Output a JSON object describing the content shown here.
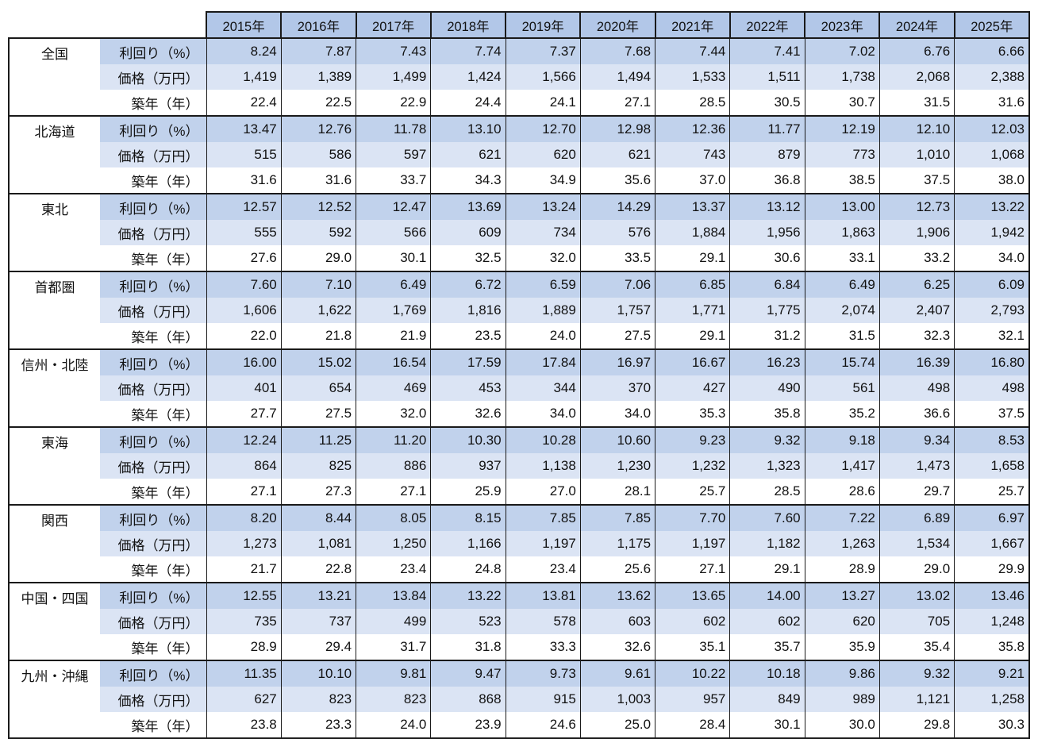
{
  "colors": {
    "header_bg": "#b2c7e8",
    "yield_row_bg": "#c1d2ec",
    "price_row_bg": "#dbe4f4",
    "age_row_bg": "#ffffff",
    "border": "#1a1a1a"
  },
  "chart_data": {
    "type": "table",
    "years": [
      "2015年",
      "2016年",
      "2017年",
      "2018年",
      "2019年",
      "2020年",
      "2021年",
      "2022年",
      "2023年",
      "2024年",
      "2025年"
    ],
    "metrics": [
      {
        "key": "yield",
        "label": "利回り（%）"
      },
      {
        "key": "price",
        "label": "価格（万円）"
      },
      {
        "key": "age",
        "label": "築年（年）"
      }
    ],
    "regions": [
      {
        "name": "全国",
        "values": {
          "yield": [
            "8.24",
            "7.87",
            "7.43",
            "7.74",
            "7.37",
            "7.68",
            "7.44",
            "7.41",
            "7.02",
            "6.76",
            "6.66"
          ],
          "price": [
            "1,419",
            "1,389",
            "1,499",
            "1,424",
            "1,566",
            "1,494",
            "1,533",
            "1,511",
            "1,738",
            "2,068",
            "2,388"
          ],
          "age": [
            "22.4",
            "22.5",
            "22.9",
            "24.4",
            "24.1",
            "27.1",
            "28.5",
            "30.5",
            "30.7",
            "31.5",
            "31.6"
          ]
        }
      },
      {
        "name": "北海道",
        "values": {
          "yield": [
            "13.47",
            "12.76",
            "11.78",
            "13.10",
            "12.70",
            "12.98",
            "12.36",
            "11.77",
            "12.19",
            "12.10",
            "12.03"
          ],
          "price": [
            "515",
            "586",
            "597",
            "621",
            "620",
            "621",
            "743",
            "879",
            "773",
            "1,010",
            "1,068"
          ],
          "age": [
            "31.6",
            "31.6",
            "33.7",
            "34.3",
            "34.9",
            "35.6",
            "37.0",
            "36.8",
            "38.5",
            "37.5",
            "38.0"
          ]
        }
      },
      {
        "name": "東北",
        "values": {
          "yield": [
            "12.57",
            "12.52",
            "12.47",
            "13.69",
            "13.24",
            "14.29",
            "13.37",
            "13.12",
            "13.00",
            "12.73",
            "13.22"
          ],
          "price": [
            "555",
            "592",
            "566",
            "609",
            "734",
            "576",
            "1,884",
            "1,956",
            "1,863",
            "1,906",
            "1,942"
          ],
          "age": [
            "27.6",
            "29.0",
            "30.1",
            "32.5",
            "32.0",
            "33.5",
            "29.1",
            "30.6",
            "33.1",
            "33.2",
            "34.0"
          ]
        }
      },
      {
        "name": "首都圏",
        "values": {
          "yield": [
            "7.60",
            "7.10",
            "6.49",
            "6.72",
            "6.59",
            "7.06",
            "6.85",
            "6.84",
            "6.49",
            "6.25",
            "6.09"
          ],
          "price": [
            "1,606",
            "1,622",
            "1,769",
            "1,816",
            "1,889",
            "1,757",
            "1,771",
            "1,775",
            "2,074",
            "2,407",
            "2,793"
          ],
          "age": [
            "22.0",
            "21.8",
            "21.9",
            "23.5",
            "24.0",
            "27.5",
            "29.1",
            "31.2",
            "31.5",
            "32.3",
            "32.1"
          ]
        }
      },
      {
        "name": "信州・北陸",
        "values": {
          "yield": [
            "16.00",
            "15.02",
            "16.54",
            "17.59",
            "17.84",
            "16.97",
            "16.67",
            "16.23",
            "15.74",
            "16.39",
            "16.80"
          ],
          "price": [
            "401",
            "654",
            "469",
            "453",
            "344",
            "370",
            "427",
            "490",
            "561",
            "498",
            "498"
          ],
          "age": [
            "27.7",
            "27.5",
            "32.0",
            "32.6",
            "34.0",
            "34.0",
            "35.3",
            "35.8",
            "35.2",
            "36.6",
            "37.5"
          ]
        }
      },
      {
        "name": "東海",
        "values": {
          "yield": [
            "12.24",
            "11.25",
            "11.20",
            "10.30",
            "10.28",
            "10.60",
            "9.23",
            "9.32",
            "9.18",
            "9.34",
            "8.53"
          ],
          "price": [
            "864",
            "825",
            "886",
            "937",
            "1,138",
            "1,230",
            "1,232",
            "1,323",
            "1,417",
            "1,473",
            "1,658"
          ],
          "age": [
            "27.1",
            "27.3",
            "27.1",
            "25.9",
            "27.0",
            "28.1",
            "25.7",
            "28.5",
            "28.6",
            "29.7",
            "25.7"
          ]
        }
      },
      {
        "name": "関西",
        "values": {
          "yield": [
            "8.20",
            "8.44",
            "8.05",
            "8.15",
            "7.85",
            "7.85",
            "7.70",
            "7.60",
            "7.22",
            "6.89",
            "6.97"
          ],
          "price": [
            "1,273",
            "1,081",
            "1,250",
            "1,166",
            "1,197",
            "1,175",
            "1,197",
            "1,182",
            "1,263",
            "1,534",
            "1,667"
          ],
          "age": [
            "21.7",
            "22.8",
            "23.4",
            "24.8",
            "23.4",
            "25.6",
            "27.1",
            "29.1",
            "28.9",
            "29.0",
            "29.9"
          ]
        }
      },
      {
        "name": "中国・四国",
        "values": {
          "yield": [
            "12.55",
            "13.21",
            "13.84",
            "13.22",
            "13.81",
            "13.62",
            "13.65",
            "14.00",
            "13.27",
            "13.02",
            "13.46"
          ],
          "price": [
            "735",
            "737",
            "499",
            "523",
            "578",
            "603",
            "602",
            "602",
            "620",
            "705",
            "1,248"
          ],
          "age": [
            "28.9",
            "29.4",
            "31.7",
            "31.8",
            "33.3",
            "32.6",
            "35.1",
            "35.7",
            "35.9",
            "35.4",
            "35.8"
          ]
        }
      },
      {
        "name": "九州・沖縄",
        "values": {
          "yield": [
            "11.35",
            "10.10",
            "9.81",
            "9.47",
            "9.73",
            "9.61",
            "10.22",
            "10.18",
            "9.86",
            "9.32",
            "9.21"
          ],
          "price": [
            "627",
            "823",
            "823",
            "868",
            "915",
            "1,003",
            "957",
            "849",
            "989",
            "1,121",
            "1,258"
          ],
          "age": [
            "23.8",
            "23.3",
            "24.0",
            "23.9",
            "24.6",
            "25.0",
            "28.4",
            "30.1",
            "30.0",
            "29.8",
            "30.3"
          ]
        }
      }
    ]
  }
}
